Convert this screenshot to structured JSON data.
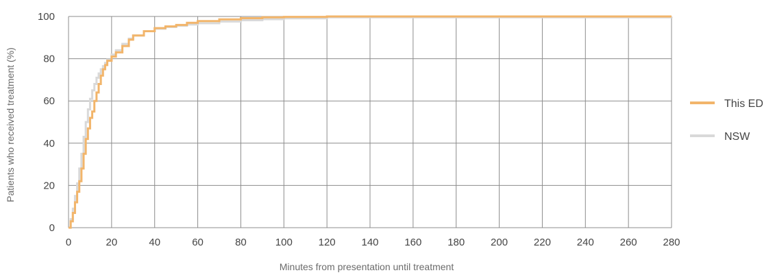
{
  "chart_data": {
    "type": "line",
    "title": "",
    "xlabel": "Minutes from presentation until treatment",
    "ylabel": "Patients who received treatment (%)",
    "xlim": [
      0,
      280
    ],
    "ylim": [
      0,
      100
    ],
    "xticks": [
      0,
      20,
      40,
      60,
      80,
      100,
      120,
      140,
      160,
      180,
      200,
      220,
      240,
      260,
      280
    ],
    "yticks": [
      0,
      20,
      40,
      60,
      80,
      100
    ],
    "grid": true,
    "legend_position": "right",
    "series": [
      {
        "name": "This ED",
        "color": "#f2b56b",
        "x": [
          0,
          1,
          2,
          3,
          4,
          5,
          6,
          7,
          8,
          9,
          10,
          11,
          12,
          13,
          14,
          15,
          16,
          17,
          18,
          20,
          22,
          25,
          28,
          30,
          35,
          40,
          45,
          50,
          55,
          60,
          70,
          80,
          90,
          100,
          120,
          280
        ],
        "y": [
          0,
          3,
          7,
          12,
          17,
          22,
          28,
          35,
          42,
          47,
          52,
          55,
          60,
          64,
          68,
          72,
          75,
          77,
          79,
          81,
          83,
          86,
          89,
          91,
          93,
          94.5,
          95.3,
          96,
          97,
          97.8,
          98.6,
          99.2,
          99.6,
          99.8,
          100,
          100
        ]
      },
      {
        "name": "NSW",
        "color": "#d9d9d9",
        "x": [
          0,
          1,
          2,
          3,
          4,
          5,
          6,
          7,
          8,
          9,
          10,
          11,
          12,
          13,
          14,
          15,
          16,
          17,
          18,
          20,
          22,
          25,
          28,
          30,
          35,
          40,
          45,
          50,
          55,
          60,
          70,
          80,
          90,
          100,
          120,
          280
        ],
        "y": [
          0,
          4,
          9,
          15,
          21,
          28,
          35,
          43,
          50,
          56,
          61,
          65,
          68,
          71,
          73,
          75,
          76.5,
          78,
          79.5,
          82,
          84,
          87,
          89.5,
          91,
          93,
          94.2,
          95,
          95.6,
          96.2,
          96.8,
          97.6,
          98.2,
          98.7,
          99.1,
          99.6,
          100
        ]
      }
    ]
  }
}
